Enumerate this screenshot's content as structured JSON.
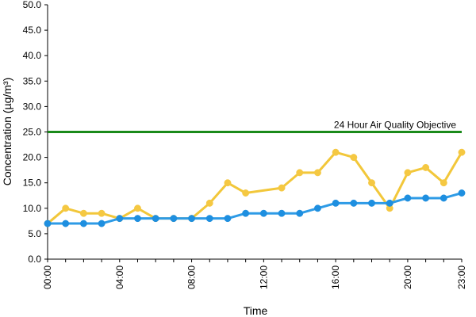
{
  "chart_data": {
    "type": "line",
    "xlabel": "Time",
    "ylabel": "Concentration (µg/m³)",
    "ylim": [
      0,
      50
    ],
    "y_ticks": [
      "0.0",
      "5.0",
      "10.0",
      "15.0",
      "20.0",
      "25.0",
      "30.0",
      "35.0",
      "40.0",
      "45.0",
      "50.0"
    ],
    "x_ticks": [
      "00:00",
      "04:00",
      "08:00",
      "12:00",
      "16:00",
      "20:00",
      "23:00"
    ],
    "x": [
      "00:00",
      "01:00",
      "02:00",
      "03:00",
      "04:00",
      "05:00",
      "06:00",
      "07:00",
      "08:00",
      "09:00",
      "10:00",
      "11:00",
      "12:00",
      "13:00",
      "14:00",
      "15:00",
      "16:00",
      "17:00",
      "18:00",
      "19:00",
      "20:00",
      "21:00",
      "22:00",
      "23:00"
    ],
    "series": [
      {
        "color": "#f2c73a",
        "marker_color": "#f5c842",
        "values": [
          7,
          10,
          9,
          9,
          8,
          10,
          8,
          8,
          8,
          11,
          15,
          13,
          null,
          14,
          17,
          17,
          21,
          20,
          15,
          10,
          17,
          18,
          15,
          21
        ]
      },
      {
        "color": "#2e9be6",
        "marker_color": "#1e8fe0",
        "values": [
          7,
          7,
          7,
          7,
          8,
          8,
          8,
          8,
          8,
          8,
          8,
          9,
          9,
          9,
          9,
          10,
          11,
          11,
          11,
          11,
          12,
          12,
          12,
          13
        ]
      }
    ],
    "reference_line": {
      "label": "24 Hour Air Quality Objective",
      "value": 25,
      "color": "#1a8a1a"
    },
    "grid": false,
    "legend": "none"
  }
}
